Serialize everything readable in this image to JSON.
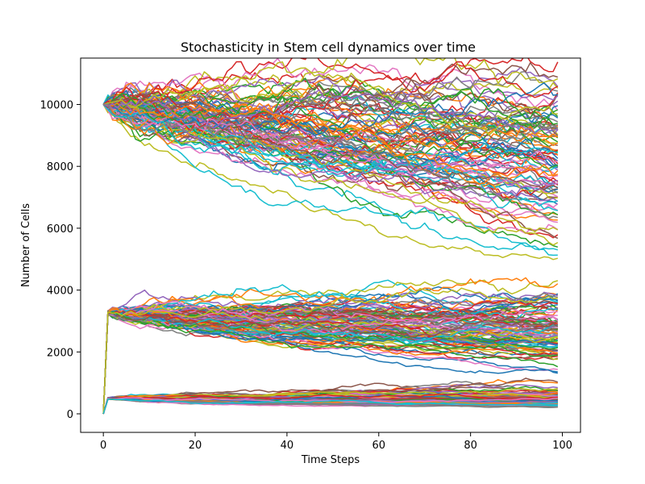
{
  "chart_data": {
    "type": "line",
    "title": "Stochasticity in Stem cell dynamics over time",
    "xlabel": "Time Steps",
    "ylabel": "Number of Cells",
    "xlim": [
      -4.95,
      103.95
    ],
    "ylim": [
      -600,
      11500
    ],
    "xticks": [
      0,
      20,
      40,
      60,
      80,
      100
    ],
    "yticks": [
      0,
      2000,
      4000,
      6000,
      8000,
      10000
    ],
    "grid": false,
    "legend": "none",
    "time_steps": 100,
    "colors": [
      "#1f77b4",
      "#ff7f0e",
      "#2ca02c",
      "#d62728",
      "#9467bd",
      "#8c564b",
      "#e377c2",
      "#7f7f7f",
      "#bcbd22",
      "#17becf"
    ],
    "groups": [
      {
        "description_of_band": "upper",
        "start": 10000,
        "end_range": [
          6050,
          10000
        ],
        "spread_peak": 10900,
        "line_count": 100
      },
      {
        "description_of_band": "middle",
        "start": 0,
        "plateau": 3300,
        "end_range": [
          2050,
          3300
        ],
        "line_count": 100
      },
      {
        "description_of_band": "lower",
        "start": 0,
        "plateau": 500,
        "end_range": [
          300,
          550
        ],
        "line_count": 100
      }
    ]
  }
}
